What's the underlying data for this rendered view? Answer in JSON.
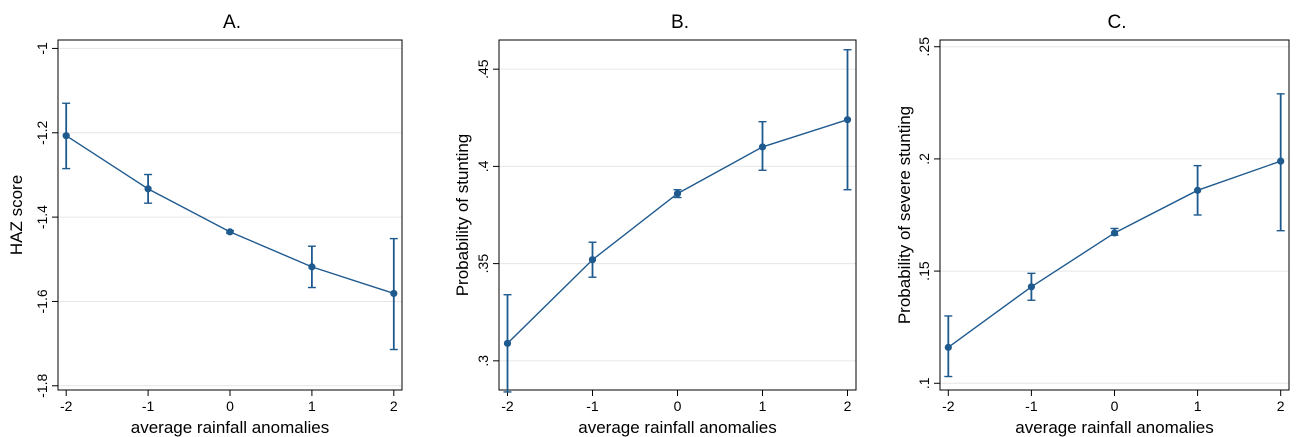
{
  "chart_data": [
    {
      "type": "line",
      "title": "A.",
      "xlabel": "average rainfall anomalies",
      "ylabel": "HAZ score",
      "x": [
        -2,
        -1,
        0,
        1,
        2
      ],
      "xlim": [
        -2.1,
        2.1
      ],
      "ylim": [
        -1.81,
        -0.98
      ],
      "yticks": [
        -1,
        -1.2,
        -1.4,
        -1.6,
        -1.8
      ],
      "ytick_labels": [
        "-1",
        "-1.2",
        "-1.4",
        "-1.6",
        "-1.8"
      ],
      "xtick_labels": [
        "-2",
        "-1",
        "0",
        "1",
        "2"
      ],
      "grid": true,
      "series": [
        {
          "values": [
            -1.207,
            -1.333,
            -1.435,
            -1.518,
            -1.581
          ],
          "ci_low": [
            -1.285,
            -1.367,
            -1.438,
            -1.567,
            -1.714
          ],
          "ci_high": [
            -1.13,
            -1.299,
            -1.432,
            -1.469,
            -1.451
          ]
        }
      ]
    },
    {
      "type": "line",
      "title": "B.",
      "xlabel": "average rainfall anomalies",
      "ylabel": "Probability of stunting",
      "x": [
        -2,
        -1,
        0,
        1,
        2
      ],
      "xlim": [
        -2.1,
        2.1
      ],
      "ylim": [
        0.285,
        0.465
      ],
      "yticks": [
        0.3,
        0.35,
        0.4,
        0.45
      ],
      "ytick_labels": [
        ".3",
        ".35",
        ".4",
        ".45"
      ],
      "xtick_labels": [
        "-2",
        "-1",
        "0",
        "1",
        "2"
      ],
      "grid": true,
      "series": [
        {
          "values": [
            0.309,
            0.352,
            0.386,
            0.41,
            0.424
          ],
          "ci_low": [
            0.284,
            0.343,
            0.384,
            0.398,
            0.388
          ],
          "ci_high": [
            0.334,
            0.361,
            0.388,
            0.423,
            0.46
          ]
        }
      ]
    },
    {
      "type": "line",
      "title": "C.",
      "xlabel": "average rainfall anomalies",
      "ylabel": "Probability of severe stunting",
      "x": [
        -2,
        -1,
        0,
        1,
        2
      ],
      "xlim": [
        -2.1,
        2.1
      ],
      "ylim": [
        0.097,
        0.253
      ],
      "yticks": [
        0.1,
        0.15,
        0.2,
        0.25
      ],
      "ytick_labels": [
        ".1",
        ".15",
        ".2",
        ".25"
      ],
      "xtick_labels": [
        "-2",
        "-1",
        "0",
        "1",
        "2"
      ],
      "grid": true,
      "series": [
        {
          "values": [
            0.116,
            0.143,
            0.167,
            0.186,
            0.199
          ],
          "ci_low": [
            0.103,
            0.137,
            0.166,
            0.175,
            0.168
          ],
          "ci_high": [
            0.13,
            0.149,
            0.169,
            0.197,
            0.229
          ]
        }
      ]
    }
  ],
  "style": {
    "series_color": "#1f5a8f",
    "grid_color": "#e6e6e6"
  }
}
